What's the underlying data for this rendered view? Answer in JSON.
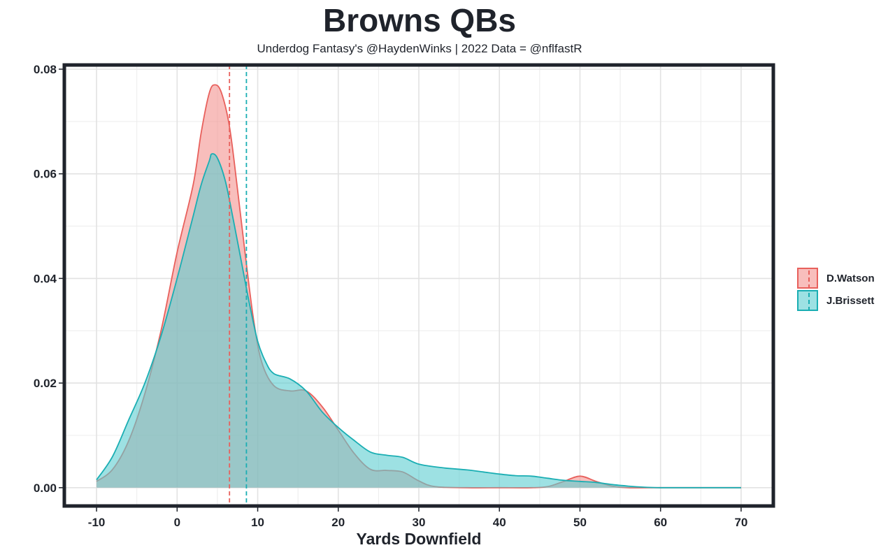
{
  "chart_data": {
    "type": "area",
    "title": "Browns QBs",
    "subtitle": "Underdog Fantasy's @HaydenWinks | 2022 Data = @nflfastR",
    "xlabel": "Yards Downfield",
    "ylabel": "",
    "xlim": [
      -14,
      74
    ],
    "ylim": [
      -0.0035,
      0.0808
    ],
    "x_ticks": [
      -10,
      0,
      10,
      20,
      30,
      40,
      50,
      60,
      70
    ],
    "x_tick_labels": [
      "-10",
      "0",
      "10",
      "20",
      "30",
      "40",
      "50",
      "60",
      "70"
    ],
    "y_ticks": [
      0,
      0.02,
      0.04,
      0.06,
      0.08
    ],
    "y_tick_labels": [
      "0.00",
      "0.02",
      "0.04",
      "0.06",
      "0.08"
    ],
    "grid": true,
    "legend_position": "right",
    "series": [
      {
        "name": "D.Watson",
        "color": "#e8605c",
        "fill": "#f4938f",
        "mean_line": 6.5,
        "points": [
          [
            -10,
            0.0012
          ],
          [
            -8,
            0.0035
          ],
          [
            -6,
            0.009
          ],
          [
            -4,
            0.018
          ],
          [
            -2,
            0.03
          ],
          [
            0,
            0.045
          ],
          [
            2,
            0.058
          ],
          [
            3,
            0.068
          ],
          [
            4,
            0.0755
          ],
          [
            4.7,
            0.077
          ],
          [
            5.5,
            0.0755
          ],
          [
            6.5,
            0.069
          ],
          [
            7.5,
            0.057
          ],
          [
            8.5,
            0.044
          ],
          [
            9.5,
            0.032
          ],
          [
            10.5,
            0.024
          ],
          [
            12,
            0.0195
          ],
          [
            14,
            0.0185
          ],
          [
            16,
            0.0185
          ],
          [
            18,
            0.0155
          ],
          [
            20,
            0.011
          ],
          [
            22,
            0.0065
          ],
          [
            24,
            0.0035
          ],
          [
            26,
            0.0033
          ],
          [
            28,
            0.003
          ],
          [
            30,
            0.0013
          ],
          [
            32,
            0.0002
          ],
          [
            36,
            0.0
          ],
          [
            40,
            0.0
          ],
          [
            44,
            0.0
          ],
          [
            46,
            0.0002
          ],
          [
            48,
            0.0012
          ],
          [
            50,
            0.0022
          ],
          [
            52,
            0.0012
          ],
          [
            54,
            0.0003
          ],
          [
            56,
            0.0
          ],
          [
            60,
            0.0
          ],
          [
            65,
            0.0
          ],
          [
            70,
            0.0
          ]
        ]
      },
      {
        "name": "J.Brissett",
        "color": "#1aaeb3",
        "fill": "#5ccdd0",
        "mean_line": 8.6,
        "points": [
          [
            -10,
            0.0015
          ],
          [
            -8,
            0.006
          ],
          [
            -6,
            0.013
          ],
          [
            -4,
            0.02
          ],
          [
            -2,
            0.029
          ],
          [
            0,
            0.04
          ],
          [
            2,
            0.052
          ],
          [
            3,
            0.058
          ],
          [
            4,
            0.0625
          ],
          [
            4.3,
            0.0638
          ],
          [
            5,
            0.063
          ],
          [
            6,
            0.0585
          ],
          [
            7,
            0.051
          ],
          [
            8,
            0.043
          ],
          [
            9,
            0.035
          ],
          [
            10,
            0.028
          ],
          [
            11,
            0.024
          ],
          [
            12,
            0.0218
          ],
          [
            14,
            0.0208
          ],
          [
            16,
            0.0185
          ],
          [
            18,
            0.0145
          ],
          [
            20,
            0.0115
          ],
          [
            22,
            0.009
          ],
          [
            24,
            0.0068
          ],
          [
            26,
            0.0062
          ],
          [
            28,
            0.0058
          ],
          [
            30,
            0.0045
          ],
          [
            33,
            0.0038
          ],
          [
            36,
            0.0034
          ],
          [
            38,
            0.003
          ],
          [
            40,
            0.0026
          ],
          [
            42,
            0.0023
          ],
          [
            44,
            0.0022
          ],
          [
            46,
            0.0018
          ],
          [
            48,
            0.0014
          ],
          [
            50,
            0.0012
          ],
          [
            52,
            0.001
          ],
          [
            54,
            0.0006
          ],
          [
            56,
            0.0003
          ],
          [
            58,
            0.0001
          ],
          [
            60,
            0.0
          ],
          [
            65,
            0.0
          ],
          [
            70,
            0.0
          ]
        ]
      }
    ]
  }
}
